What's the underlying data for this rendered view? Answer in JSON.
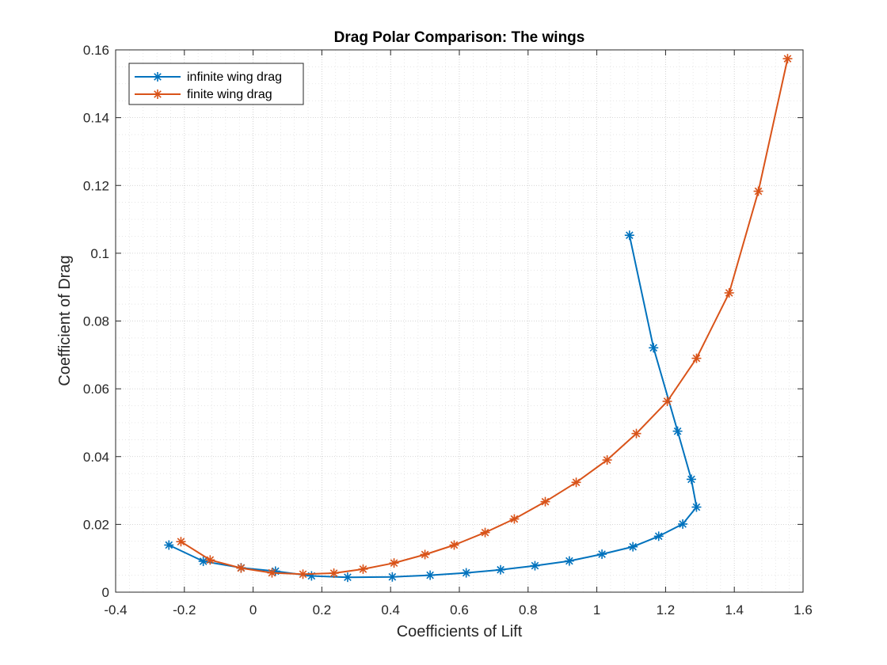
{
  "chart_data": {
    "type": "line",
    "title": "Drag Polar Comparison: The wings",
    "xlabel": "Coefficients of Lift",
    "ylabel": "Coefficient of Drag",
    "xlim": [
      -0.4,
      1.6
    ],
    "ylim": [
      0,
      0.16
    ],
    "xticks": [
      -0.4,
      -0.2,
      0,
      0.2,
      0.4,
      0.6,
      0.8,
      1,
      1.2,
      1.4,
      1.6
    ],
    "xtick_labels": [
      "-0.4",
      "-0.2",
      "0",
      "0.2",
      "0.4",
      "0.6",
      "0.8",
      "1",
      "1.2",
      "1.4",
      "1.6"
    ],
    "yticks": [
      0,
      0.02,
      0.04,
      0.06,
      0.08,
      0.1,
      0.12,
      0.14,
      0.16
    ],
    "ytick_labels": [
      "0",
      "0.02",
      "0.04",
      "0.06",
      "0.08",
      "0.1",
      "0.12",
      "0.14",
      "0.16"
    ],
    "grid": "on (major and minor, dotted)",
    "legend_position": "top-left",
    "marker": "asterisk",
    "series": [
      {
        "name": "infinite wing drag",
        "color": "#0072BD",
        "x": [
          -0.245,
          -0.145,
          -0.035,
          0.065,
          0.17,
          0.275,
          0.405,
          0.515,
          0.62,
          0.72,
          0.82,
          0.92,
          1.015,
          1.105,
          1.18,
          1.25,
          1.29,
          1.275,
          1.235,
          1.165,
          1.095
        ],
        "y": [
          0.0139,
          0.0091,
          0.0072,
          0.0062,
          0.0048,
          0.0044,
          0.0045,
          0.005,
          0.0057,
          0.0066,
          0.0078,
          0.0092,
          0.0112,
          0.0134,
          0.0165,
          0.0201,
          0.0251,
          0.0333,
          0.0475,
          0.0721,
          0.1053
        ]
      },
      {
        "name": "finite wing drag",
        "color": "#D95319",
        "x": [
          -0.21,
          -0.125,
          -0.035,
          0.055,
          0.145,
          0.235,
          0.32,
          0.41,
          0.5,
          0.585,
          0.675,
          0.76,
          0.85,
          0.94,
          1.03,
          1.115,
          1.205,
          1.29,
          1.385,
          1.47,
          1.555
        ],
        "y": [
          0.0149,
          0.0095,
          0.0071,
          0.0057,
          0.0053,
          0.0056,
          0.0068,
          0.0086,
          0.0111,
          0.0139,
          0.0176,
          0.0216,
          0.0267,
          0.0324,
          0.039,
          0.0468,
          0.0563,
          0.069,
          0.0883,
          0.1183,
          0.1574
        ]
      }
    ]
  }
}
